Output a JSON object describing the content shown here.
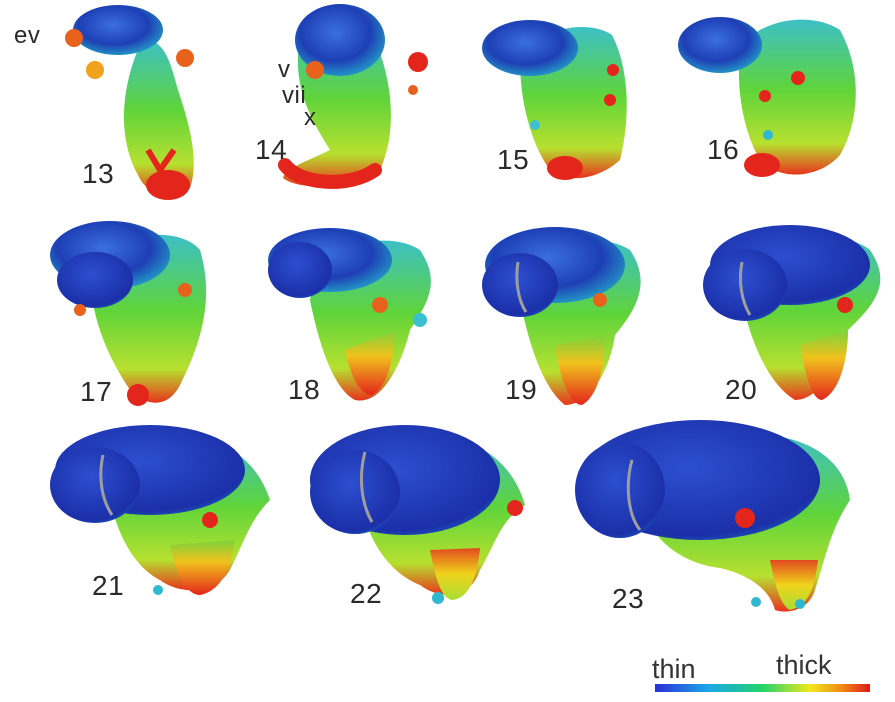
{
  "stages": {
    "s13": "13",
    "s14": "14",
    "s15": "15",
    "s16": "16",
    "s17": "17",
    "s18": "18",
    "s19": "19",
    "s20": "20",
    "s21": "21",
    "s22": "22",
    "s23": "23"
  },
  "annotations": {
    "ev": "ev",
    "v": "v",
    "vii": "vii",
    "x": "x"
  },
  "scale": {
    "min_label": "thin",
    "max_label": "thick"
  },
  "colors": {
    "thin": "#1f3fbf",
    "mid": "#19c18c",
    "middle_green": "#7ed321",
    "yellow": "#f5e11a",
    "thick": "#e8281f",
    "background": "#ffffff"
  }
}
